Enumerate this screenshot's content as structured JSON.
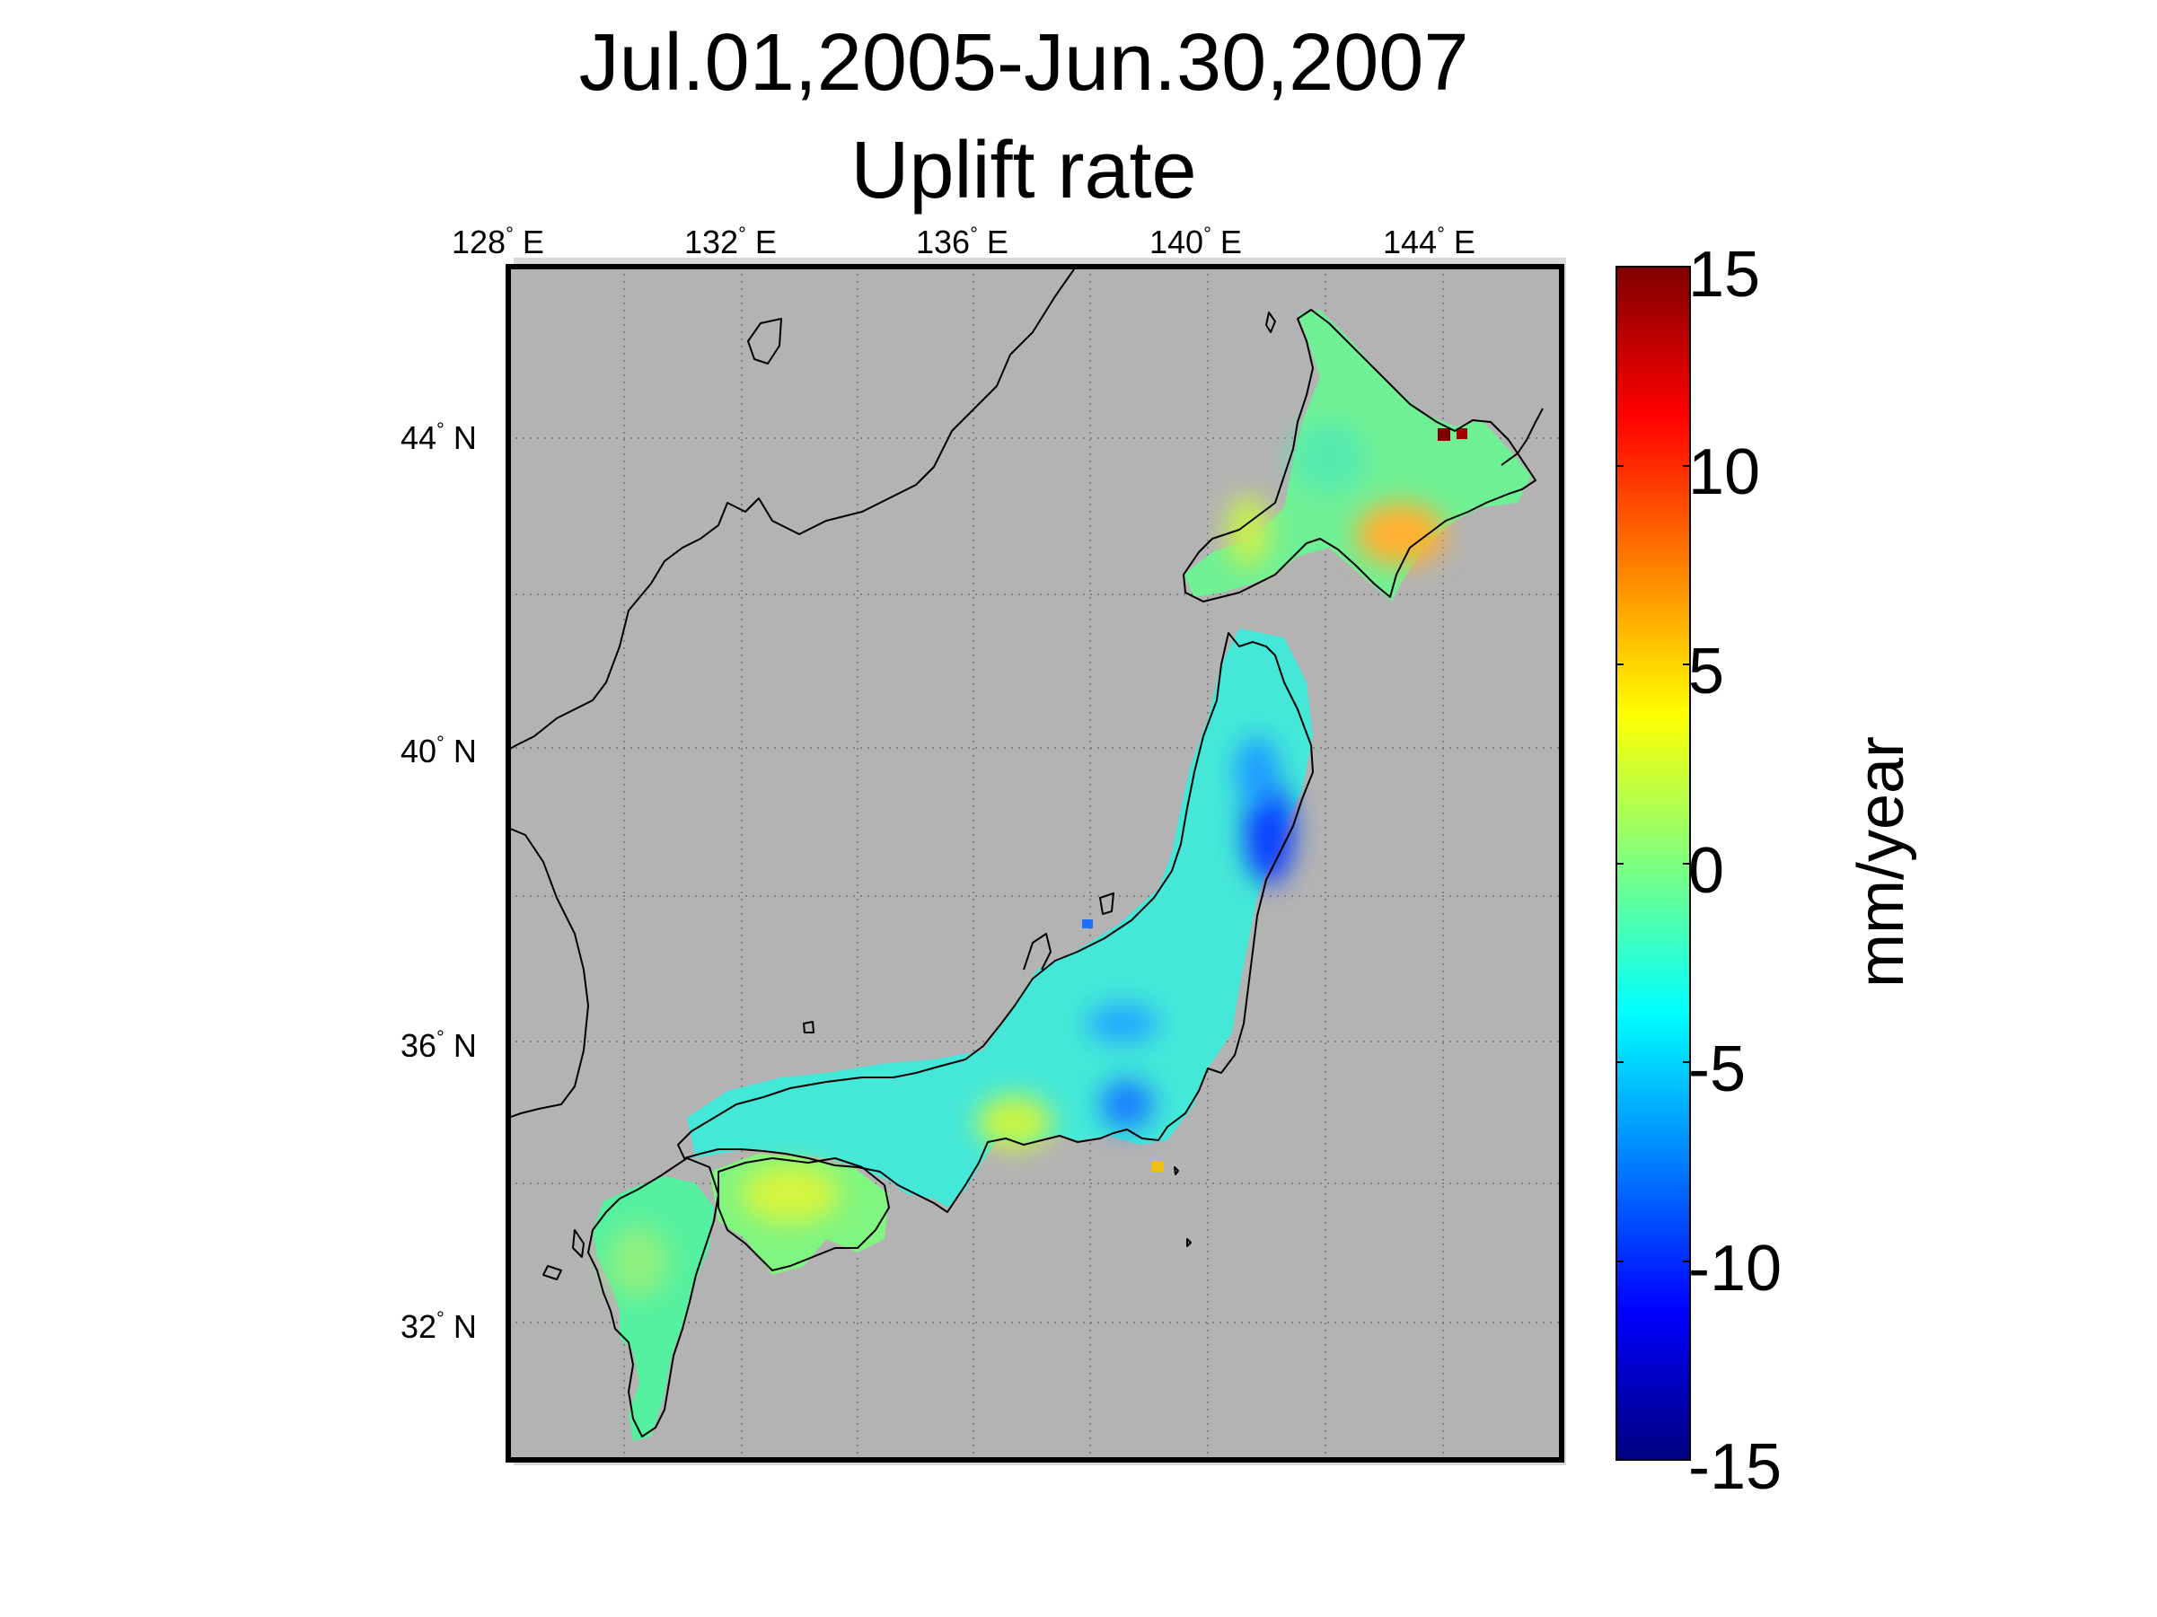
{
  "title_line1": "Jul.01,2005-Jun.30,2007",
  "title_line2": "Uplift rate",
  "map": {
    "lon_ticks": [
      {
        "deg": "128",
        "hemi": "E"
      },
      {
        "deg": "132",
        "hemi": "E"
      },
      {
        "deg": "136",
        "hemi": "E"
      },
      {
        "deg": "140",
        "hemi": "E"
      },
      {
        "deg": "144",
        "hemi": "E"
      }
    ],
    "lat_ticks": [
      {
        "deg": "44",
        "hemi": "N"
      },
      {
        "deg": "40",
        "hemi": "N"
      },
      {
        "deg": "36",
        "hemi": "N"
      },
      {
        "deg": "32",
        "hemi": "N"
      }
    ],
    "extent": {
      "lon_min": 128,
      "lon_max": 146,
      "lat_min": 30,
      "lat_max": 46
    },
    "background_color": "#b3b3b3",
    "grid": "dotted"
  },
  "colorbar": {
    "label": "mm/year",
    "ticks": [
      "15",
      "10",
      "5",
      "0",
      "-5",
      "-10",
      "-15"
    ],
    "range": [
      -15,
      15
    ],
    "colormap": "jet"
  }
}
